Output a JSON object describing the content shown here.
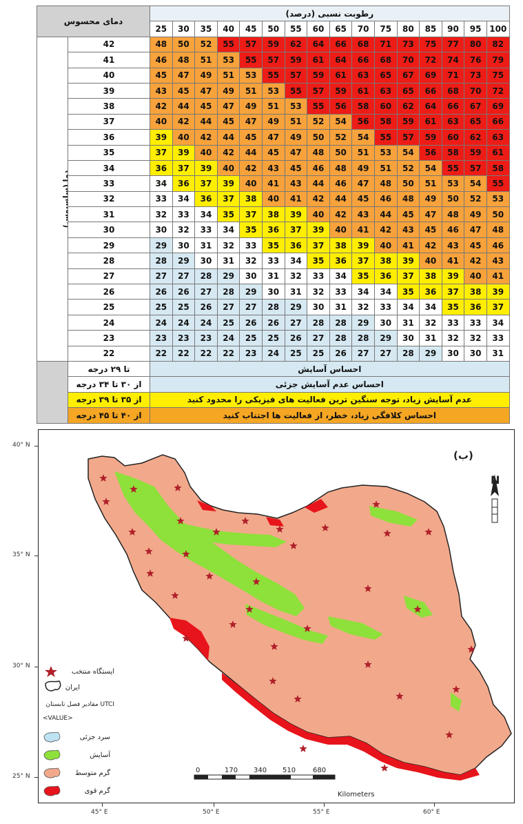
{
  "table": {
    "feels_like_label": "دمای محسوس",
    "humidity_title": "رطوبت نسبی (درصد)",
    "temp_axis_label": "دما (سلسیوس)",
    "humidity": [
      25,
      30,
      35,
      40,
      45,
      50,
      55,
      60,
      65,
      70,
      75,
      80,
      85,
      90,
      95,
      100
    ],
    "rows": [
      {
        "t": 42,
        "v": [
          48,
          50,
          52,
          55,
          57,
          59,
          62,
          64,
          66,
          68,
          71,
          73,
          75,
          77,
          80,
          82
        ]
      },
      {
        "t": 41,
        "v": [
          46,
          48,
          51,
          53,
          55,
          57,
          59,
          61,
          64,
          66,
          68,
          70,
          72,
          74,
          76,
          79
        ]
      },
      {
        "t": 40,
        "v": [
          45,
          47,
          49,
          51,
          53,
          55,
          57,
          59,
          61,
          63,
          65,
          67,
          69,
          71,
          73,
          75
        ]
      },
      {
        "t": 39,
        "v": [
          43,
          45,
          47,
          49,
          51,
          53,
          55,
          57,
          59,
          61,
          63,
          65,
          66,
          68,
          70,
          72
        ]
      },
      {
        "t": 38,
        "v": [
          42,
          44,
          45,
          47,
          49,
          51,
          53,
          55,
          56,
          58,
          60,
          62,
          64,
          66,
          67,
          69
        ]
      },
      {
        "t": 37,
        "v": [
          40,
          42,
          44,
          45,
          47,
          49,
          51,
          52,
          54,
          56,
          58,
          59,
          61,
          63,
          65,
          66
        ]
      },
      {
        "t": 36,
        "v": [
          39,
          40,
          42,
          44,
          45,
          47,
          49,
          50,
          52,
          54,
          55,
          57,
          59,
          60,
          62,
          63
        ]
      },
      {
        "t": 35,
        "v": [
          37,
          39,
          40,
          42,
          44,
          45,
          47,
          48,
          50,
          51,
          53,
          54,
          56,
          58,
          59,
          61
        ]
      },
      {
        "t": 34,
        "v": [
          36,
          37,
          39,
          40,
          42,
          43,
          45,
          46,
          48,
          49,
          51,
          52,
          54,
          55,
          57,
          58
        ]
      },
      {
        "t": 33,
        "v": [
          34,
          36,
          37,
          39,
          40,
          41,
          43,
          44,
          46,
          47,
          48,
          50,
          51,
          53,
          54,
          55
        ]
      },
      {
        "t": 32,
        "v": [
          33,
          34,
          36,
          37,
          38,
          40,
          41,
          42,
          44,
          45,
          46,
          48,
          49,
          50,
          52,
          53
        ]
      },
      {
        "t": 31,
        "v": [
          32,
          33,
          34,
          35,
          37,
          38,
          39,
          40,
          42,
          43,
          44,
          45,
          47,
          48,
          49,
          50
        ]
      },
      {
        "t": 30,
        "v": [
          30,
          32,
          33,
          34,
          35,
          36,
          37,
          39,
          40,
          41,
          42,
          43,
          45,
          46,
          47,
          48
        ]
      },
      {
        "t": 29,
        "v": [
          29,
          30,
          31,
          32,
          33,
          35,
          36,
          37,
          38,
          39,
          40,
          41,
          42,
          43,
          45,
          46
        ]
      },
      {
        "t": 28,
        "v": [
          28,
          29,
          30,
          31,
          32,
          33,
          34,
          35,
          36,
          37,
          38,
          39,
          40,
          41,
          42,
          43
        ]
      },
      {
        "t": 27,
        "v": [
          27,
          27,
          28,
          29,
          30,
          31,
          32,
          33,
          34,
          35,
          36,
          37,
          38,
          39,
          40,
          41
        ]
      },
      {
        "t": 26,
        "v": [
          26,
          26,
          27,
          28,
          29,
          30,
          31,
          32,
          33,
          34,
          34,
          35,
          36,
          37,
          38,
          39
        ]
      },
      {
        "t": 25,
        "v": [
          25,
          25,
          26,
          27,
          27,
          28,
          29,
          30,
          31,
          32,
          33,
          34,
          34,
          35,
          36,
          37
        ]
      },
      {
        "t": 24,
        "v": [
          24,
          24,
          24,
          25,
          26,
          26,
          27,
          28,
          28,
          29,
          30,
          31,
          32,
          33,
          33,
          34
        ]
      },
      {
        "t": 23,
        "v": [
          23,
          23,
          23,
          24,
          25,
          25,
          26,
          27,
          28,
          28,
          29,
          30,
          31,
          32,
          32,
          33
        ]
      },
      {
        "t": 22,
        "v": [
          22,
          22,
          22,
          22,
          23,
          24,
          25,
          25,
          26,
          27,
          27,
          28,
          29,
          30,
          30,
          31
        ]
      }
    ],
    "legend": [
      {
        "range": "تا ۲۹ درجه",
        "text": "احساس آسایش",
        "color": "#d6e9f3"
      },
      {
        "range": "از ۳۰ تا ۳۴ درجه",
        "text": "احساس عدم آسایش جزئی",
        "color": "#d6e9f3"
      },
      {
        "range": "از ۳۵ تا ۳۹ درجه",
        "text": "عدم آسایش زیاد، توجه سنگین ترین فعالیت های فیزیکی را محدود کنید",
        "color": "#ffee00"
      },
      {
        "range": "از ۴۰ تا ۴۵ درجه",
        "text": "احساس کلافگی زیاد، خطر، از فعالیت ها اجتناب کنید",
        "color": "#f5a623"
      }
    ],
    "colors": {
      "comfort": "#ffffff",
      "cool": "#d6e9f3",
      "yellow": "#ffee00",
      "orange": "#f7a23b",
      "red": "#ee1c16"
    }
  },
  "map": {
    "panel_label": "(ب)",
    "north": "N",
    "lat_labels": [
      "40° N",
      "35° N",
      "30° N",
      "25° N"
    ],
    "lon_labels": [
      "45° E",
      "50° E",
      "55° E",
      "60° E"
    ],
    "scale_ticks": [
      "0",
      "170",
      "340",
      "510",
      "680"
    ],
    "scale_unit": "Kilometers",
    "legend": {
      "station": "ایستگاه منتخب",
      "iran": "ایران",
      "utci": "مقادیر فصل تابستان UTCI",
      "value": "<VALUE>",
      "classes": [
        {
          "label": "سرد جزئی",
          "color": "#bde3f3"
        },
        {
          "label": "آسایش",
          "color": "#8ee03a"
        },
        {
          "label": "گرم متوسط",
          "color": "#f2a98b"
        },
        {
          "label": "گرم قوی",
          "color": "#e8141b"
        }
      ]
    },
    "colors": {
      "land": "#f2a98b",
      "comfort": "#8ee03a",
      "hot": "#e8141b",
      "star": "#b0202a",
      "border": "#222222"
    }
  }
}
